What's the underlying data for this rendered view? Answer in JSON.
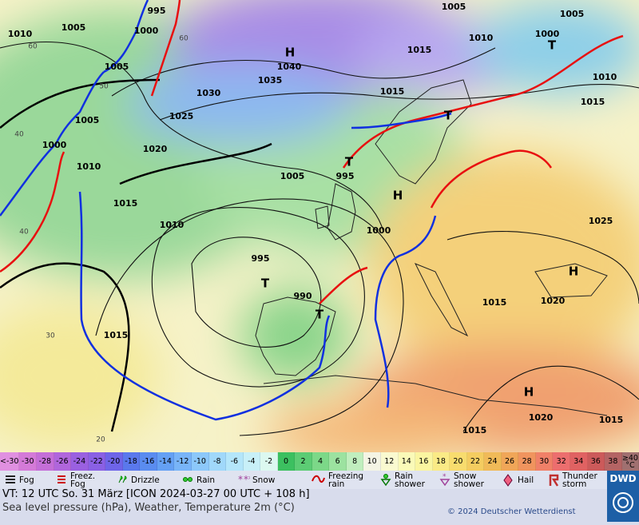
{
  "map": {
    "isobar_labels": [
      "995",
      "1005",
      "1005",
      "1010",
      "1005",
      "1000",
      "1010",
      "1000",
      "1015",
      "1005",
      "1040",
      "1035",
      "1030",
      "1015",
      "1010",
      "1015",
      "1025",
      "1005",
      "1020",
      "1000",
      "1010",
      "1005",
      "995",
      "1015",
      "1025",
      "1010",
      "1000",
      "995",
      "1015",
      "1020",
      "990",
      "1015",
      "1020",
      "1015",
      "1015"
    ],
    "highs": [
      "H",
      "H",
      "H",
      "H"
    ],
    "lows": [
      "T",
      "T",
      "T",
      "T",
      "T"
    ],
    "latitude_labels": [
      "60",
      "60",
      "50",
      "40",
      "40",
      "30",
      "20"
    ]
  },
  "temperature_scale": [
    {
      "label": "<-30",
      "color": "#e090e0"
    },
    {
      "label": "-30",
      "color": "#d47ad8"
    },
    {
      "label": "-28",
      "color": "#c46ed8"
    },
    {
      "label": "-26",
      "color": "#b066dc"
    },
    {
      "label": "-24",
      "color": "#9a60e0"
    },
    {
      "label": "-22",
      "color": "#8a60e4"
    },
    {
      "label": "-20",
      "color": "#6e64e8"
    },
    {
      "label": "-18",
      "color": "#5a78ec"
    },
    {
      "label": "-16",
      "color": "#5a8cf0"
    },
    {
      "label": "-14",
      "color": "#64a0f4"
    },
    {
      "label": "-12",
      "color": "#78b4f8"
    },
    {
      "label": "-10",
      "color": "#8cc8fa"
    },
    {
      "label": "-8",
      "color": "#a0d8fa"
    },
    {
      "label": "-6",
      "color": "#b4e6fa"
    },
    {
      "label": "-4",
      "color": "#c8f0f8"
    },
    {
      "label": "-2",
      "color": "#dcf8f0"
    },
    {
      "label": "0",
      "color": "#3cc060"
    },
    {
      "label": "2",
      "color": "#5ccc74"
    },
    {
      "label": "4",
      "color": "#7cd888"
    },
    {
      "label": "6",
      "color": "#9ce2a0"
    },
    {
      "label": "8",
      "color": "#c0eebe"
    },
    {
      "label": "10",
      "color": "#f4f4e4"
    },
    {
      "label": "12",
      "color": "#fafad0"
    },
    {
      "label": "14",
      "color": "#fafab8"
    },
    {
      "label": "16",
      "color": "#faf5a0"
    },
    {
      "label": "18",
      "color": "#faea86"
    },
    {
      "label": "20",
      "color": "#f8dc6e"
    },
    {
      "label": "22",
      "color": "#f4cc60"
    },
    {
      "label": "24",
      "color": "#f0ba58"
    },
    {
      "label": "26",
      "color": "#f0a658"
    },
    {
      "label": "28",
      "color": "#f0945e"
    },
    {
      "label": "30",
      "color": "#f08068"
    },
    {
      "label": "32",
      "color": "#ec6e6e"
    },
    {
      "label": "34",
      "color": "#e06262"
    },
    {
      "label": "36",
      "color": "#cc5a5a"
    },
    {
      "label": "38",
      "color": "#b46464"
    },
    {
      "label": "≥40 °C",
      "color": "#a07070"
    }
  ],
  "weather_legend": [
    "Fog",
    "Freez. Fog",
    "Drizzle",
    "Rain",
    "Snow",
    "Freezing rain",
    "Rain shower",
    "Snow shower",
    "Hail",
    "Thunder storm"
  ],
  "footer": {
    "valid_time": "VT: 12 UTC So.  31 März [ICON 2024-03-27  00 UTC + 108 h]",
    "description": "Sea level pressure (hPa), Weather, Temperature 2m (°C)",
    "copyright": "© 2024 Deutscher Wetterdienst",
    "logo": "DWD"
  }
}
